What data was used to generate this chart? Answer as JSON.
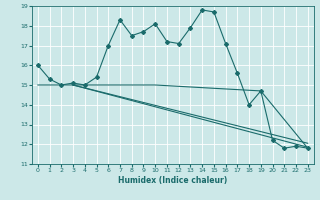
{
  "xlabel": "Humidex (Indice chaleur)",
  "bg_color": "#cce8e8",
  "grid_color": "#ffffff",
  "line_color": "#1a6b6b",
  "xlim": [
    -0.5,
    23.5
  ],
  "ylim": [
    11,
    19
  ],
  "yticks": [
    11,
    12,
    13,
    14,
    15,
    16,
    17,
    18,
    19
  ],
  "xticks": [
    0,
    1,
    2,
    3,
    4,
    5,
    6,
    7,
    8,
    9,
    10,
    11,
    12,
    13,
    14,
    15,
    16,
    17,
    18,
    19,
    20,
    21,
    22,
    23
  ],
  "series1_x": [
    0,
    1,
    2,
    3,
    4,
    5,
    6,
    7,
    8,
    9,
    10,
    11,
    12,
    13,
    14,
    15,
    16,
    17,
    18,
    19,
    20,
    21,
    22,
    23
  ],
  "series1_y": [
    16.0,
    15.3,
    15.0,
    15.1,
    15.0,
    15.4,
    17.0,
    18.3,
    17.5,
    17.7,
    18.1,
    17.2,
    17.1,
    17.9,
    18.8,
    18.7,
    17.1,
    15.6,
    14.0,
    14.7,
    12.2,
    11.8,
    11.9,
    11.8
  ],
  "series2_x": [
    0,
    3,
    10,
    19,
    23
  ],
  "series2_y": [
    15.0,
    15.0,
    15.0,
    14.7,
    11.8
  ],
  "series3_x": [
    3,
    23
  ],
  "series3_y": [
    15.0,
    11.85
  ],
  "series4_x": [
    3,
    23
  ],
  "series4_y": [
    15.0,
    12.05
  ],
  "tick_fontsize": 4.5,
  "xlabel_fontsize": 5.5
}
